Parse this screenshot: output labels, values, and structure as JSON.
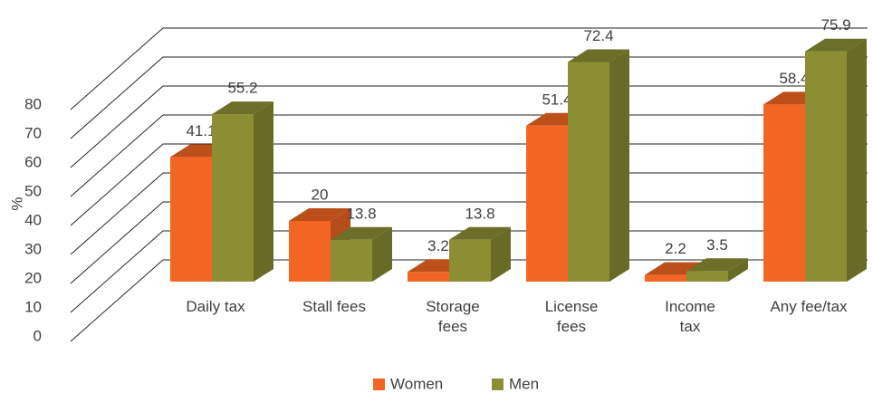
{
  "chart_data": {
    "type": "bar3d",
    "y_label": "%",
    "categories": [
      "Daily tax",
      "Stall fees",
      "Storage fees",
      "License fees",
      "Income tax",
      "Any fee/tax"
    ],
    "series": [
      {
        "name": "Women",
        "color": "#f26522",
        "values": [
          41.1,
          20,
          3.2,
          51.4,
          2.2,
          58.4
        ]
      },
      {
        "name": "Men",
        "color": "#8b8e33",
        "values": [
          55.2,
          13.8,
          13.8,
          72.4,
          3.5,
          75.9
        ]
      }
    ],
    "ylim": [
      0,
      80
    ],
    "yticks": [
      0,
      10,
      20,
      30,
      40,
      50,
      60,
      70,
      80
    ],
    "grid": true,
    "legend": "bottom"
  }
}
